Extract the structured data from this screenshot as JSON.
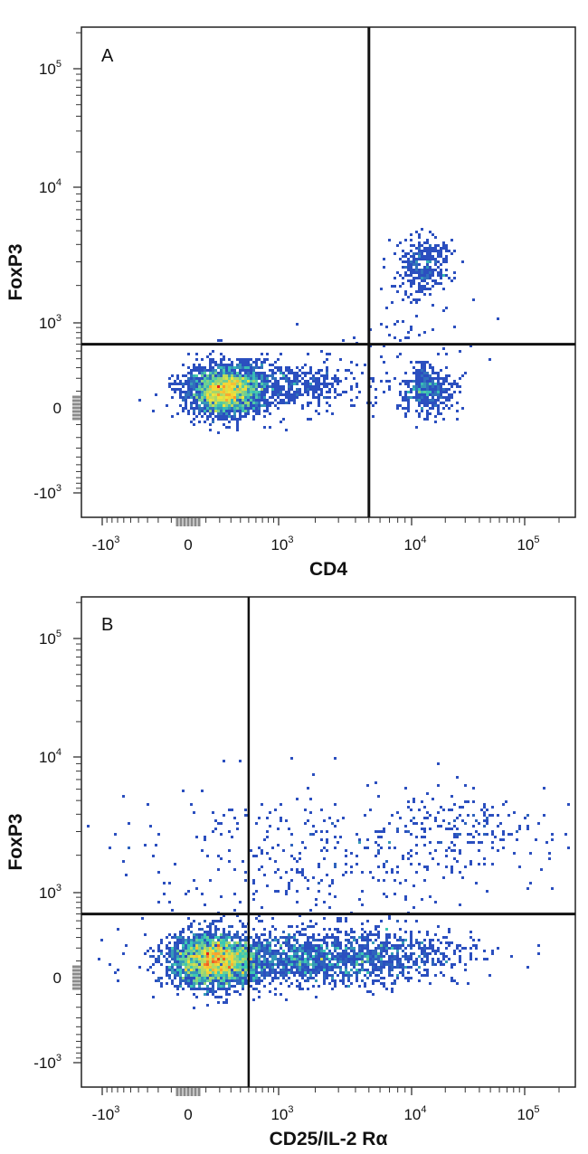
{
  "chart_data": [
    {
      "type": "scatter",
      "plot_style": "flow cytometry density dot plot (biexponential axes)",
      "panel_label": "A",
      "xlabel": "CD4",
      "ylabel": "FoxP3",
      "x_tick_labels": [
        {
          "base": "-10",
          "exp": "3",
          "value": -1000
        },
        {
          "base": "0",
          "exp": "",
          "value": 0
        },
        {
          "base": "10",
          "exp": "3",
          "value": 1000
        },
        {
          "base": "10",
          "exp": "4",
          "value": 10000
        },
        {
          "base": "10",
          "exp": "5",
          "value": 100000
        }
      ],
      "y_tick_labels": [
        {
          "base": "-10",
          "exp": "3",
          "value": -1000
        },
        {
          "base": "0",
          "exp": "",
          "value": 0
        },
        {
          "base": "10",
          "exp": "3",
          "value": 1000
        },
        {
          "base": "10",
          "exp": "4",
          "value": 10000
        },
        {
          "base": "10",
          "exp": "5",
          "value": 100000
        }
      ],
      "xlim": [
        -1500,
        262144
      ],
      "ylim": [
        -1500,
        262144
      ],
      "quadrant_gates": {
        "x": 5000,
        "y": 600
      },
      "populations": [
        {
          "name": "CD4- FoxP3-",
          "center_x": 250,
          "center_y": 100,
          "relative_density": "high"
        },
        {
          "name": "CD4+ FoxP3-",
          "center_x": 14000,
          "center_y": 100,
          "relative_density": "medium"
        },
        {
          "name": "CD4+ FoxP3+",
          "center_x": 13000,
          "center_y": 2800,
          "relative_density": "medium"
        }
      ],
      "colors": {
        "low": "#2b4fbf",
        "mid": "#3cc8b4",
        "high": "#f2e23a",
        "peak": "#e8221b"
      }
    },
    {
      "type": "scatter",
      "plot_style": "flow cytometry density dot plot (biexponential axes)",
      "panel_label": "B",
      "xlabel": "CD25/IL-2 Rα",
      "ylabel": "FoxP3",
      "x_tick_labels": [
        {
          "base": "-10",
          "exp": "3",
          "value": -1000
        },
        {
          "base": "0",
          "exp": "",
          "value": 0
        },
        {
          "base": "10",
          "exp": "3",
          "value": 1000
        },
        {
          "base": "10",
          "exp": "4",
          "value": 10000
        },
        {
          "base": "10",
          "exp": "5",
          "value": 100000
        }
      ],
      "y_tick_labels": [
        {
          "base": "-10",
          "exp": "3",
          "value": -1000
        },
        {
          "base": "0",
          "exp": "",
          "value": 0
        },
        {
          "base": "10",
          "exp": "3",
          "value": 1000
        },
        {
          "base": "10",
          "exp": "4",
          "value": 10000
        },
        {
          "base": "10",
          "exp": "5",
          "value": 100000
        }
      ],
      "xlim": [
        -1500,
        262144
      ],
      "ylim": [
        -1500,
        262144
      ],
      "quadrant_gates": {
        "x": 500,
        "y": 600
      },
      "populations": [
        {
          "name": "CD25- FoxP3- (main)",
          "center_x": 150,
          "center_y": 100,
          "relative_density": "high"
        },
        {
          "name": "CD25+ FoxP3- (tail)",
          "center_x_range": [
            500,
            10000
          ],
          "center_y": 100,
          "relative_density": "low-medium"
        },
        {
          "name": "CD25+ FoxP3+",
          "center_x_range": [
            1000,
            50000
          ],
          "center_y": 2500,
          "relative_density": "low"
        }
      ],
      "colors": {
        "low": "#2b4fbf",
        "mid": "#3cc8b4",
        "high": "#f2e23a",
        "peak": "#e8221b"
      }
    }
  ]
}
